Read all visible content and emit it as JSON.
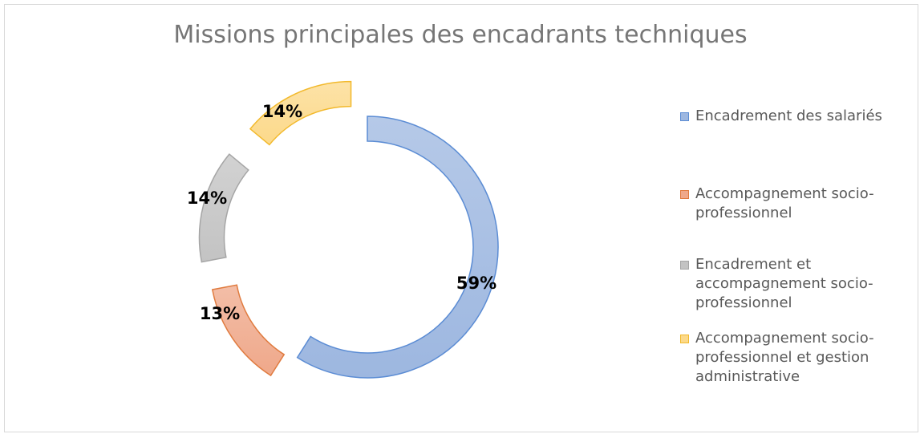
{
  "chart_data": {
    "type": "pie",
    "title": "Missions principales des encadrants techniques",
    "categories": [
      "Encadrement des salariés",
      "Accompagnement socio-professionnel",
      "Encadrement et accompagnement socio-professionnel",
      "Accompagnement socio-professionnel et gestion administrative"
    ],
    "values": [
      59,
      13,
      14,
      14
    ],
    "data_labels": [
      "59%",
      "13%",
      "14%",
      "14%"
    ],
    "colors": [
      "#9DB7E0",
      "#EFA88A",
      "#C3C3C3",
      "#FCD98A"
    ],
    "border_colors": [
      "#5B8CD4",
      "#E07B3F",
      "#A5A5A5",
      "#F2B92C"
    ],
    "legend_position": "right",
    "style": "exploded doughnut with gradient fill"
  }
}
